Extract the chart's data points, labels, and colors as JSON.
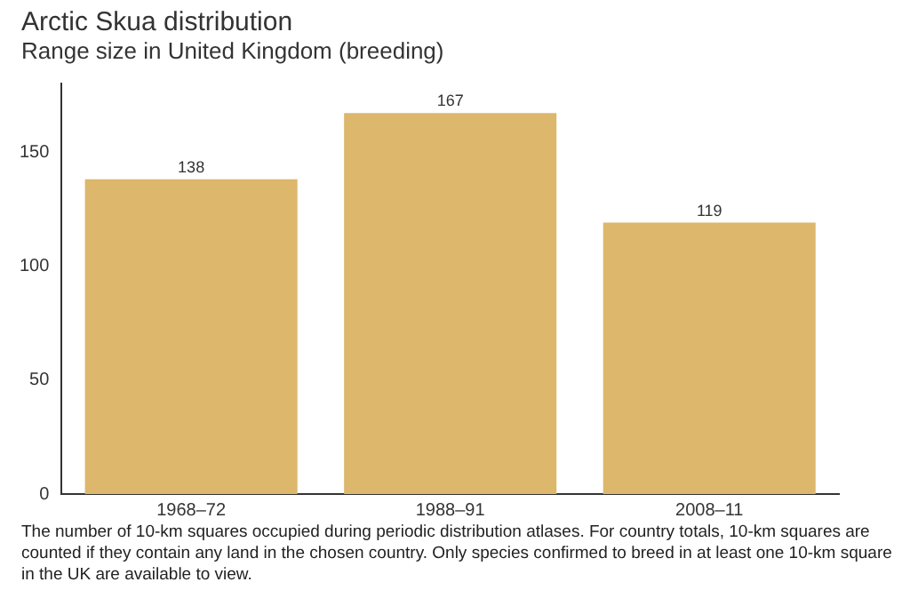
{
  "chart_data": {
    "type": "bar",
    "title": "Arctic Skua distribution",
    "subtitle": "Range size in United Kingdom (breeding)",
    "categories": [
      "1968–72",
      "1988–91",
      "2008–11"
    ],
    "values": [
      138,
      167,
      119
    ],
    "color": "#dcb76c",
    "ylim": [
      0,
      180
    ],
    "yticks": [
      0,
      50,
      100,
      150
    ],
    "grid": false,
    "legend": false,
    "data_labels": true,
    "annotations": [
      "The number of 10-km squares occupied during periodic distribution atlases. For country totals, 10-km squares are counted if they contain any land in the chosen country. Only species confirmed to breed in at least one 10-km square in the UK are available to view."
    ]
  }
}
